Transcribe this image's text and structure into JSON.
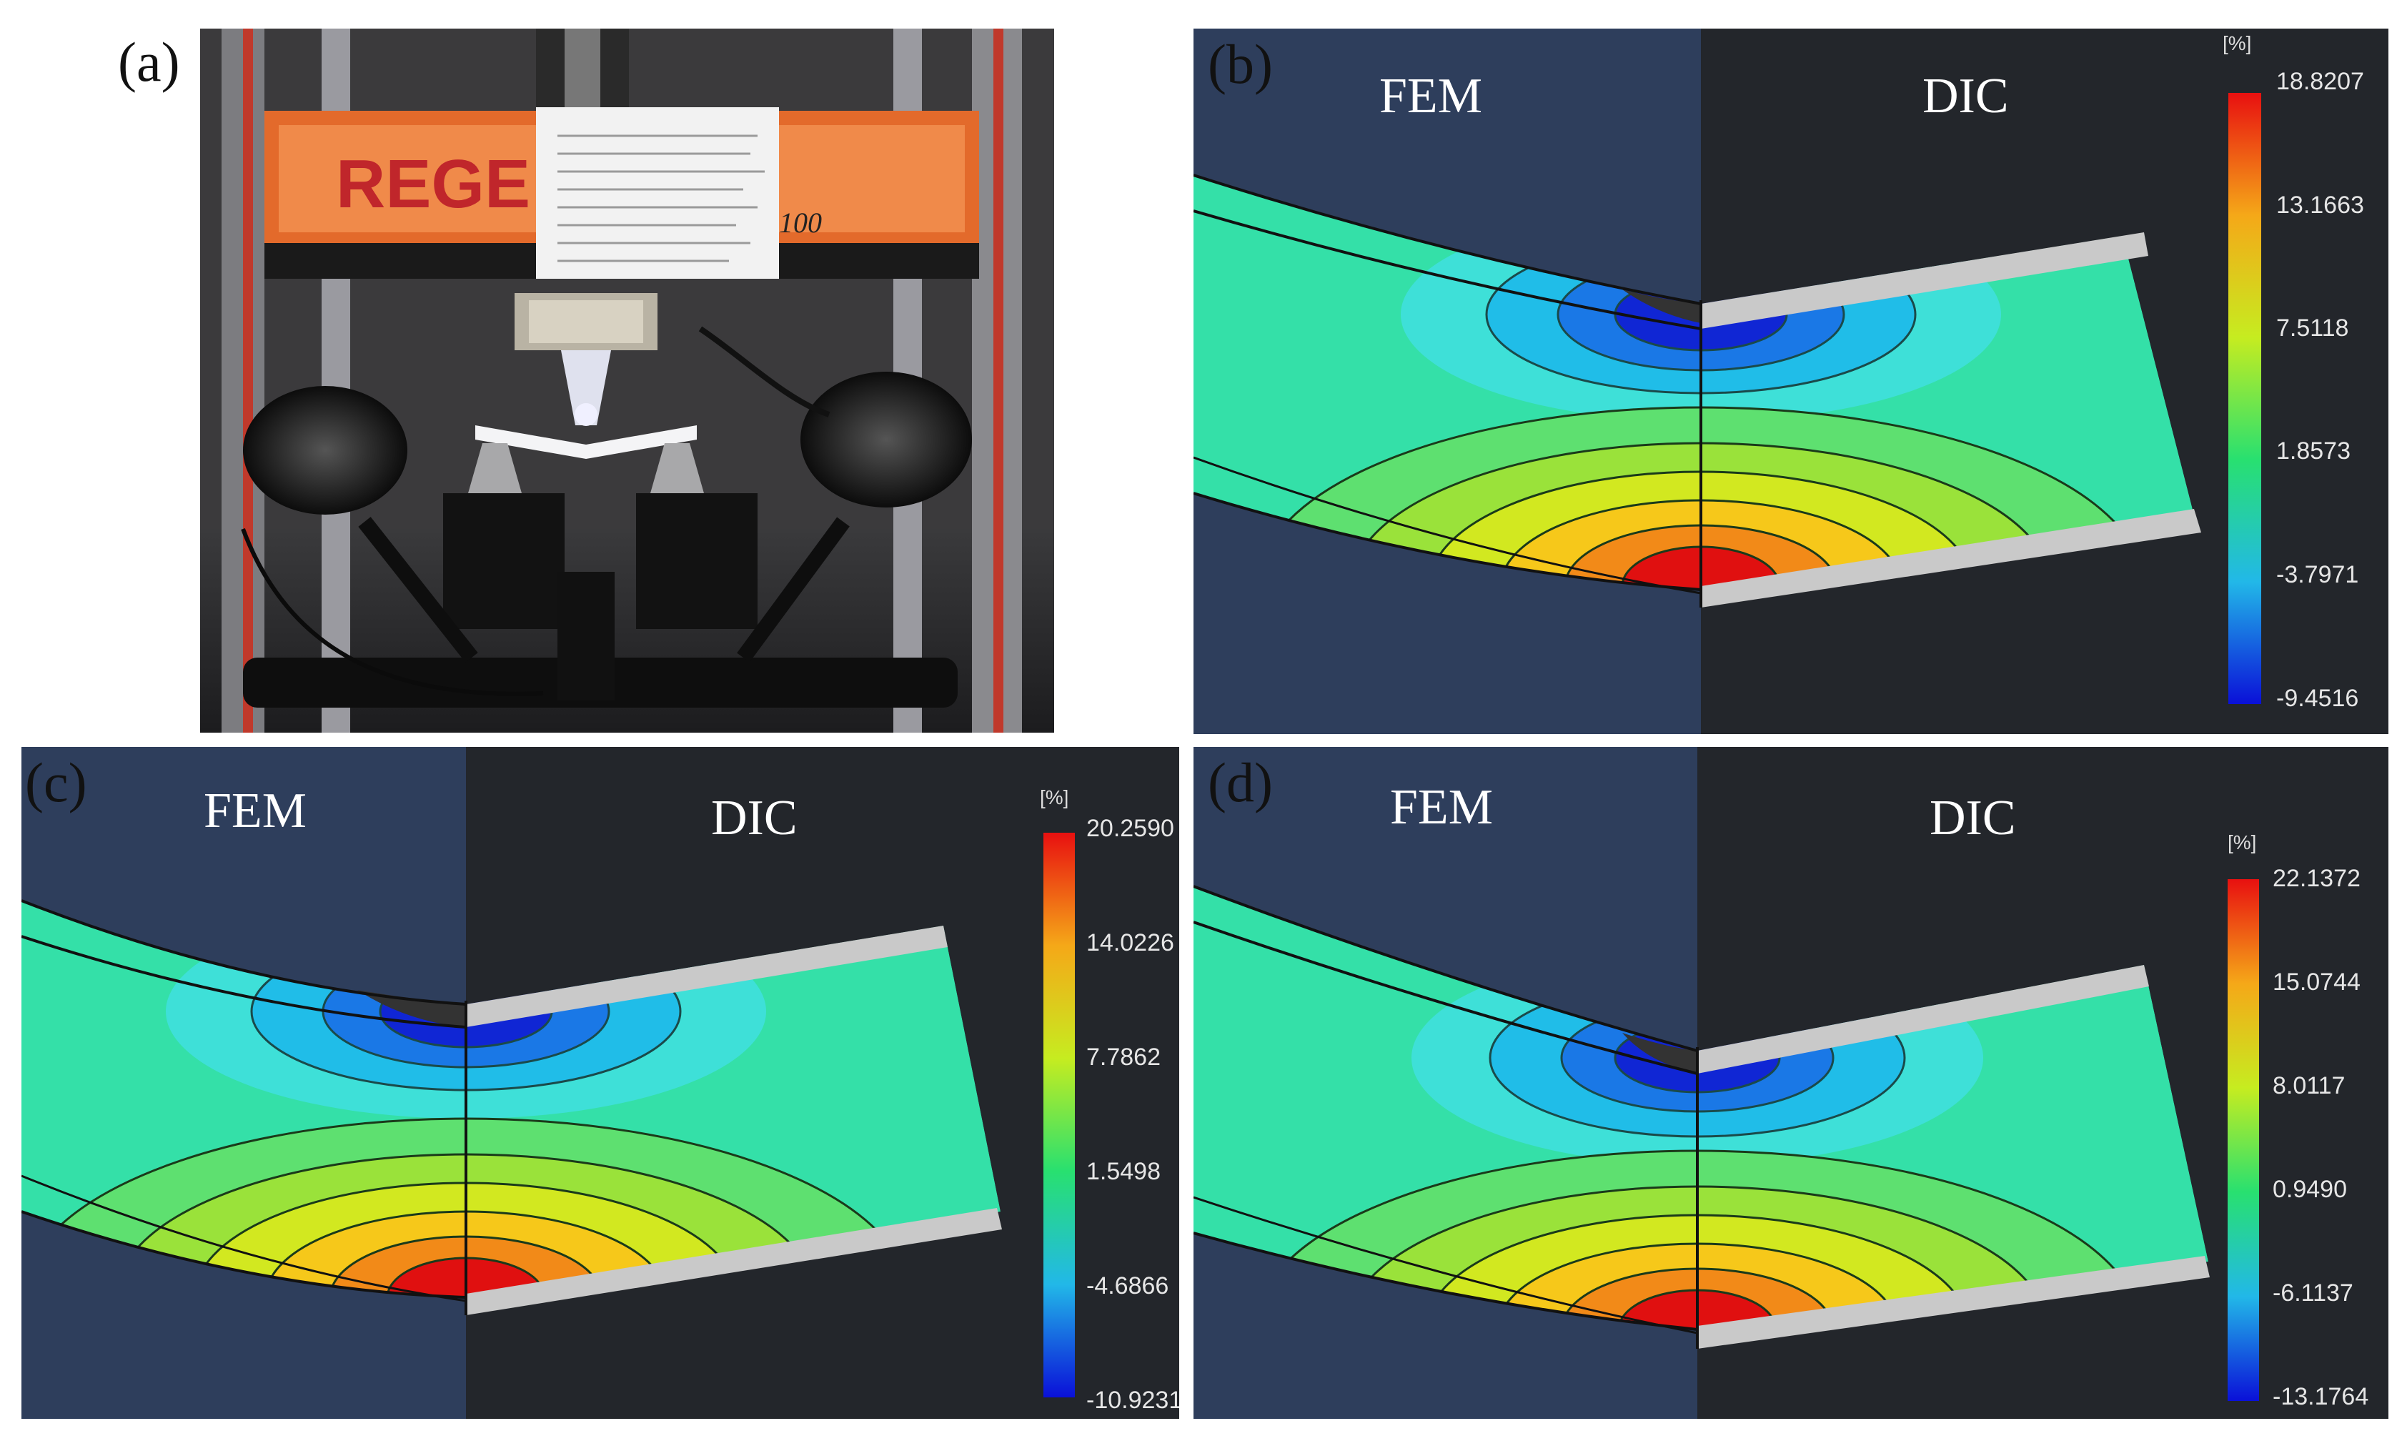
{
  "panels": {
    "a": {
      "label": "(a)",
      "machine_brand": "REGE",
      "machine_model": "100"
    },
    "b": {
      "label": "(b)",
      "fem": "FEM",
      "dic": "DIC",
      "unit": "[%]",
      "ticks": [
        "18.8207",
        "13.1663",
        "7.5118",
        "1.8573",
        "-3.7971",
        "-9.4516"
      ]
    },
    "c": {
      "label": "(c)",
      "fem": "FEM",
      "dic": "DIC",
      "unit": "[%]",
      "ticks": [
        "20.2590",
        "14.0226",
        "7.7862",
        "1.5498",
        "-4.6866",
        "-10.9231"
      ]
    },
    "d": {
      "label": "(d)",
      "fem": "FEM",
      "dic": "DIC",
      "unit": "[%]",
      "ticks": [
        "22.1372",
        "15.0744",
        "8.0117",
        "0.9490",
        "-6.1137",
        "-13.1764"
      ]
    }
  },
  "colors": {
    "fem_background": "#2e3e5c",
    "dic_background": "#23262b",
    "strain_high": "#e01010",
    "strain_mid": "#3edc5a",
    "strain_zero": "#34e0a8",
    "strain_low": "#1020d0",
    "rim": "#c9c9c9"
  }
}
